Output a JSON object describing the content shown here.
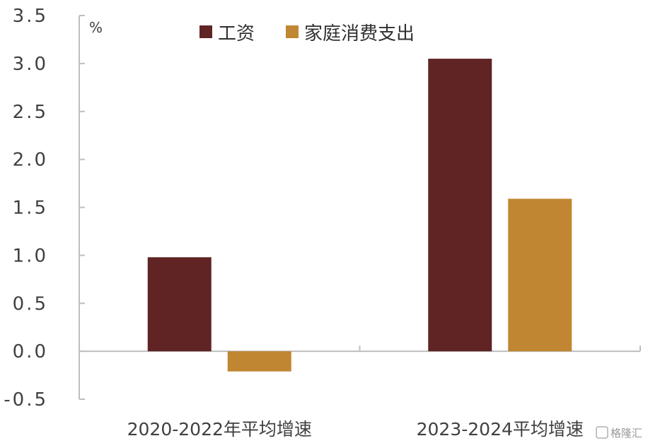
{
  "chart_data": {
    "type": "bar",
    "categories": [
      "2020-2022年平均增速",
      "2023-2024平均增速"
    ],
    "series": [
      {
        "name": "工资",
        "values": [
          0.98,
          3.05
        ],
        "color": "#5f2423"
      },
      {
        "name": "家庭消费支出",
        "values": [
          -0.21,
          1.59
        ],
        "color": "#c08631"
      }
    ],
    "unit": "%",
    "ylim": [
      -0.5,
      3.5
    ],
    "yticks": [
      "3.5",
      "3.0",
      "2.5",
      "2.0",
      "1.5",
      "1.0",
      "0.5",
      "0.0",
      "-0.5"
    ],
    "ytick_values": [
      3.5,
      3.0,
      2.5,
      2.0,
      1.5,
      1.0,
      0.5,
      0.0,
      -0.5
    ],
    "legend_position": "top",
    "grid": false
  },
  "watermark": "格隆汇",
  "colors": {
    "axis": "#bfbfbf",
    "text": "#404040"
  }
}
